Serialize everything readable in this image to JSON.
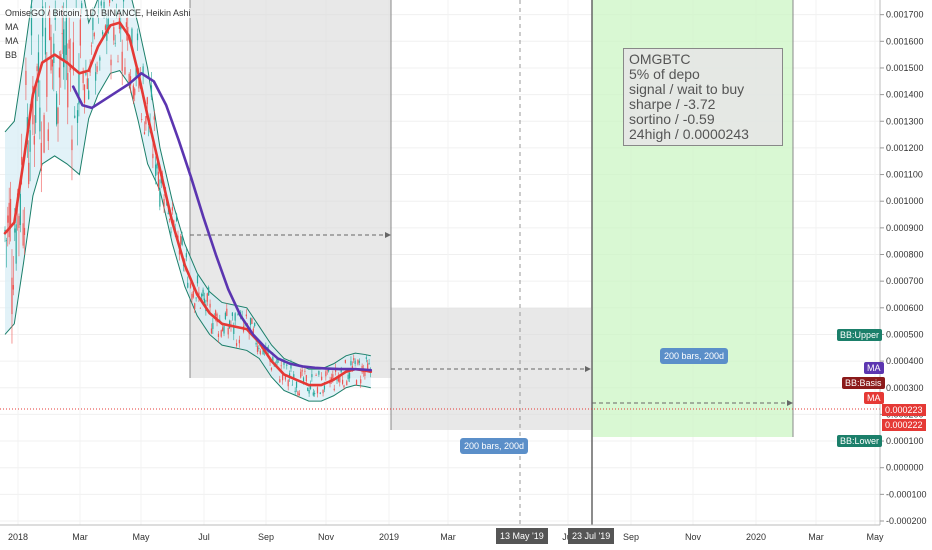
{
  "header": {
    "title": "OmiseGO / Bitcoin, 1D, BINANCE, Heikin Ashi",
    "indicators": [
      "MA",
      "MA",
      "BB"
    ]
  },
  "note": {
    "lines": [
      "OMGBTC",
      "5% of depo",
      "signal / wait to buy",
      "sharpe / -3.72",
      "sortino / -0.59",
      "24high / 0.0000243"
    ]
  },
  "range_labels": {
    "first": "200 bars, 200d",
    "second": "200 bars, 200d"
  },
  "axis_badges": {
    "x_current": "13 May '19",
    "x_future": "23 Jul '19",
    "y_price_a": "0.000223",
    "y_price_b": "0.000222"
  },
  "legend_tags": {
    "bb_upper": "BB:Upper",
    "bb_basis": "BB:Basis",
    "bb_lower": "BB:Lower",
    "ma_a": "MA",
    "ma_b": "MA"
  },
  "colors": {
    "ma_fast": "#e53935",
    "ma_slow": "#5b35b0",
    "bb": "#1b7f6a",
    "bb_fill": "#d6ecf5",
    "candle_up": "#26a69a",
    "candle_down": "#ef5350",
    "range_box": "#d8d8d8",
    "projection_box": "#ccf5c4",
    "price_line": "#e53935"
  },
  "chart_data": {
    "type": "line",
    "title": "OmiseGO / Bitcoin, 1D, BINANCE, Heikin Ashi",
    "ylim": [
      -0.0002,
      0.00174
    ],
    "y_ticks": [
      "0.001700",
      "0.001600",
      "0.001500",
      "0.001400",
      "0.001300",
      "0.001200",
      "0.001100",
      "0.001000",
      "0.000900",
      "0.000800",
      "0.000700",
      "0.000600",
      "0.000500",
      "0.000400",
      "0.000300",
      "0.000200",
      "0.000100",
      "0.000000",
      "-0.000100",
      "-0.000200"
    ],
    "x_ticks": [
      "2018",
      "Mar",
      "May",
      "Jul",
      "Sep",
      "Nov",
      "2019",
      "Mar",
      "Jul",
      "Sep",
      "Nov",
      "2020",
      "Mar",
      "May"
    ],
    "current_price": 0.000223,
    "series": [
      {
        "name": "MA",
        "key": "ma_fast",
        "points": [
          [
            0,
            0.00088
          ],
          [
            0.03,
            0.00092
          ],
          [
            0.06,
            0.00115
          ],
          [
            0.09,
            0.0014
          ],
          [
            0.12,
            0.00152
          ],
          [
            0.16,
            0.00155
          ],
          [
            0.2,
            0.00152
          ],
          [
            0.24,
            0.00148
          ],
          [
            0.27,
            0.00149
          ],
          [
            0.3,
            0.00158
          ],
          [
            0.34,
            0.00166
          ],
          [
            0.37,
            0.00167
          ],
          [
            0.4,
            0.00162
          ],
          [
            0.43,
            0.00148
          ],
          [
            0.46,
            0.00132
          ],
          [
            0.5,
            0.00112
          ],
          [
            0.54,
            0.00092
          ],
          [
            0.58,
            0.00076
          ],
          [
            0.62,
            0.00065
          ],
          [
            0.66,
            0.00058
          ],
          [
            0.7,
            0.00054
          ],
          [
            0.74,
            0.00053
          ],
          [
            0.78,
            0.00052
          ],
          [
            0.82,
            0.00047
          ],
          [
            0.86,
            0.0004
          ],
          [
            0.9,
            0.00035
          ],
          [
            0.94,
            0.00033
          ],
          [
            0.98,
            0.00031
          ],
          [
            1.02,
            0.00031
          ],
          [
            1.06,
            0.00033
          ],
          [
            1.1,
            0.00036
          ],
          [
            1.13,
            0.00037
          ],
          [
            1.16,
            0.000365
          ],
          [
            1.18,
            0.00036
          ]
        ]
      },
      {
        "name": "MA",
        "key": "ma_slow",
        "points": [
          [
            0.22,
            0.00143
          ],
          [
            0.25,
            0.00136
          ],
          [
            0.28,
            0.00135
          ],
          [
            0.32,
            0.00138
          ],
          [
            0.36,
            0.00141
          ],
          [
            0.4,
            0.00144
          ],
          [
            0.44,
            0.00148
          ],
          [
            0.48,
            0.00145
          ],
          [
            0.52,
            0.00136
          ],
          [
            0.56,
            0.00123
          ],
          [
            0.6,
            0.00109
          ],
          [
            0.64,
            0.00094
          ],
          [
            0.68,
            0.0008
          ],
          [
            0.72,
            0.00067
          ],
          [
            0.76,
            0.00057
          ],
          [
            0.8,
            0.0005
          ],
          [
            0.84,
            0.00045
          ],
          [
            0.88,
            0.00041
          ],
          [
            0.92,
            0.00039
          ],
          [
            0.96,
            0.00038
          ],
          [
            1.0,
            0.000375
          ],
          [
            1.04,
            0.000372
          ],
          [
            1.08,
            0.00037
          ],
          [
            1.12,
            0.00037
          ],
          [
            1.16,
            0.000368
          ],
          [
            1.18,
            0.000366
          ]
        ]
      }
    ]
  }
}
